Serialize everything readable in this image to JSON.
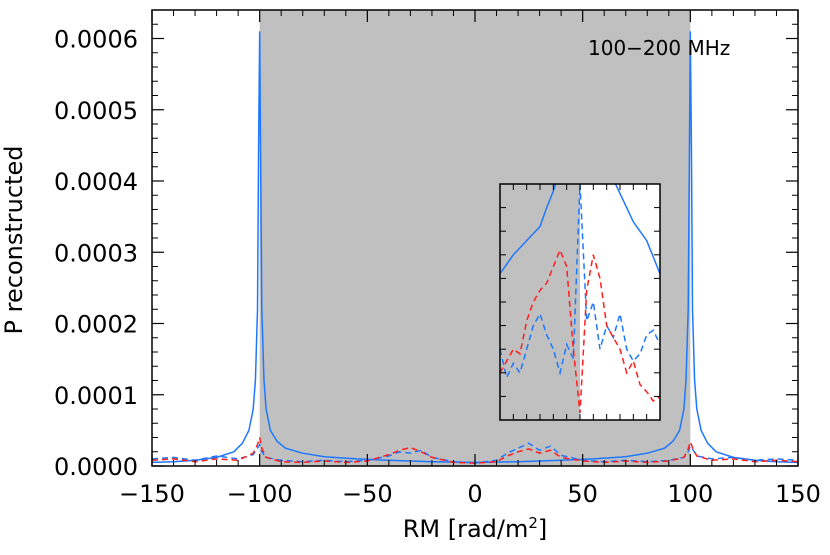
{
  "chart_data": {
    "type": "line",
    "title": "",
    "xlabel": "RM [rad/m",
    "xlabel_sup": "2",
    "xlabel_close": "]",
    "ylabel": "P reconstructed",
    "xlim": [
      -150,
      150
    ],
    "ylim": [
      0,
      0.00064
    ],
    "x_ticks": [
      -150,
      -100,
      -50,
      0,
      50,
      100,
      150
    ],
    "x_tick_labels": [
      "−150",
      "−100",
      "−50",
      "0",
      "50",
      "100",
      "150"
    ],
    "y_ticks": [
      0.0,
      0.0001,
      0.0002,
      0.0003,
      0.0004,
      0.0005,
      0.0006
    ],
    "y_tick_labels": [
      "0.0000",
      "0.0001",
      "0.0002",
      "0.0003",
      "0.0004",
      "0.0005",
      "0.0006"
    ],
    "shaded_region": {
      "x": [
        -100,
        100
      ],
      "color": "#c0c0c0"
    },
    "annotation": "100−200 MHz",
    "colors": {
      "blue": "#1e78ff",
      "red": "#ff1e1e",
      "shade": "#c0c0c0"
    },
    "series": [
      {
        "name": "blue solid",
        "style": "solid",
        "color": "#1e78ff",
        "x": [
          -150,
          -140,
          -130,
          -120,
          -112,
          -108,
          -105,
          -103,
          -102,
          -101,
          -100.5,
          -100,
          -99.5,
          -99,
          -98,
          -97,
          -95,
          -92,
          -88,
          -80,
          -70,
          -55,
          -40,
          -30,
          -20,
          0,
          20,
          30,
          40,
          55,
          70,
          80,
          88,
          92,
          95,
          97,
          98,
          99,
          99.5,
          100,
          100.5,
          101,
          102,
          103,
          105,
          108,
          112,
          120,
          130,
          140,
          150
        ],
        "y": [
          5e-06,
          6e-06,
          8e-06,
          1.2e-05,
          2e-05,
          3.2e-05,
          5e-05,
          8e-05,
          0.00012,
          0.00022,
          0.00045,
          0.00061,
          0.00042,
          0.00022,
          0.00012,
          8e-05,
          5e-05,
          3.5e-05,
          2.5e-05,
          1.8e-05,
          1.3e-05,
          1e-05,
          8e-06,
          7e-06,
          6e-06,
          5e-06,
          6e-06,
          7e-06,
          8e-06,
          1e-05,
          1.3e-05,
          1.8e-05,
          2.5e-05,
          3.5e-05,
          5e-05,
          8e-05,
          0.00012,
          0.00022,
          0.00042,
          0.00061,
          0.00045,
          0.00022,
          0.00012,
          8e-05,
          5e-05,
          3.2e-05,
          2e-05,
          1.2e-05,
          8e-06,
          6e-06,
          5e-06
        ]
      },
      {
        "name": "blue dashed",
        "style": "dashed",
        "color": "#1e78ff",
        "x": [
          -150,
          -140,
          -130,
          -120,
          -110,
          -103,
          -101,
          -100,
          -99,
          -97,
          -90,
          -80,
          -70,
          -60,
          -50,
          -40,
          -35,
          -30,
          -25,
          -20,
          -10,
          0,
          10,
          15,
          20,
          25,
          30,
          35,
          40,
          50,
          60,
          70,
          80,
          90,
          97,
          99,
          100,
          101,
          103,
          110,
          120,
          130,
          140,
          150
        ],
        "y": [
          1e-05,
          1.2e-05,
          8e-06,
          1.4e-05,
          1e-05,
          1.6e-05,
          2.5e-05,
          3e-05,
          2e-05,
          1.2e-05,
          8e-06,
          6e-06,
          8e-06,
          6e-06,
          8e-06,
          1.4e-05,
          2e-05,
          1.8e-05,
          2.2e-05,
          1.2e-05,
          6e-06,
          4e-06,
          8e-06,
          1.8e-05,
          2.5e-05,
          3.2e-05,
          2.2e-05,
          2.8e-05,
          1.5e-05,
          8e-06,
          6e-06,
          8e-06,
          6e-06,
          8e-06,
          1.2e-05,
          2e-05,
          2.8e-05,
          2.4e-05,
          1.4e-05,
          1e-05,
          1.2e-05,
          8e-06,
          1e-05,
          8e-06
        ]
      },
      {
        "name": "red dashed",
        "style": "dashed",
        "color": "#ff1e1e",
        "x": [
          -150,
          -140,
          -130,
          -120,
          -110,
          -103,
          -101,
          -100,
          -99,
          -97,
          -90,
          -80,
          -70,
          -60,
          -50,
          -40,
          -35,
          -30,
          -25,
          -20,
          -10,
          0,
          10,
          15,
          20,
          25,
          30,
          35,
          40,
          50,
          60,
          70,
          80,
          90,
          97,
          99,
          100,
          101,
          103,
          110,
          120,
          130,
          140,
          150
        ],
        "y": [
          8e-06,
          1e-05,
          6e-06,
          1e-05,
          8e-06,
          1.8e-05,
          3e-05,
          4e-05,
          2.5e-05,
          1.2e-05,
          6e-06,
          5e-06,
          7e-06,
          5e-06,
          7e-06,
          1.6e-05,
          2.2e-05,
          2.6e-05,
          2e-05,
          1.2e-05,
          5e-06,
          4e-06,
          6e-06,
          1.4e-05,
          2e-05,
          2.4e-05,
          1.8e-05,
          2.2e-05,
          1.2e-05,
          7e-06,
          5e-06,
          7e-06,
          5e-06,
          7e-06,
          1.2e-05,
          2.4e-05,
          3.4e-05,
          2.6e-05,
          1.4e-05,
          8e-06,
          1e-05,
          6e-06,
          8e-06,
          6e-06
        ]
      }
    ],
    "inset": {
      "xlim": [
        -6,
        6
      ],
      "shaded_to": 0,
      "series": [
        {
          "name": "inset blue solid",
          "style": "solid",
          "color": "#1e78ff",
          "x": [
            -6,
            -5,
            -4,
            -3,
            -2.5,
            -2,
            -1.5,
            -1,
            -0.5,
            0,
            0.5,
            1,
            1.5,
            2,
            3,
            4,
            5,
            6
          ],
          "y": [
            0.62,
            0.7,
            0.76,
            0.82,
            0.9,
            0.97,
            1.06,
            1.1,
            1.1,
            1.1,
            1.1,
            1.1,
            1.1,
            1.08,
            0.96,
            0.84,
            0.76,
            0.62
          ]
        },
        {
          "name": "inset blue dashed",
          "style": "dashed",
          "color": "#1e78ff",
          "x": [
            -6,
            -5.5,
            -5,
            -4.5,
            -4,
            -3.5,
            -3,
            -2.5,
            -2,
            -1.5,
            -1,
            -0.5,
            0,
            0.5,
            1,
            1.5,
            2,
            2.5,
            3,
            3.5,
            4,
            4.5,
            5,
            5.5,
            6
          ],
          "y": [
            0.3,
            0.18,
            0.24,
            0.2,
            0.3,
            0.4,
            0.45,
            0.36,
            0.3,
            0.2,
            0.32,
            0.26,
            1.0,
            0.42,
            0.5,
            0.3,
            0.4,
            0.35,
            0.45,
            0.3,
            0.25,
            0.28,
            0.36,
            0.38,
            0.32
          ]
        },
        {
          "name": "inset red dashed",
          "style": "dashed",
          "color": "#ff1e1e",
          "x": [
            -6,
            -5.5,
            -5,
            -4.5,
            -4,
            -3.5,
            -3,
            -2.5,
            -2,
            -1.5,
            -1,
            -0.5,
            0,
            0.5,
            1,
            1.5,
            2,
            2.5,
            3,
            3.5,
            4,
            4.5,
            5,
            5.5,
            6
          ],
          "y": [
            0.2,
            0.25,
            0.3,
            0.28,
            0.42,
            0.5,
            0.55,
            0.58,
            0.65,
            0.72,
            0.65,
            0.3,
            0.03,
            0.55,
            0.7,
            0.6,
            0.4,
            0.35,
            0.3,
            0.2,
            0.25,
            0.15,
            0.12,
            0.08,
            0.1
          ]
        }
      ]
    }
  }
}
